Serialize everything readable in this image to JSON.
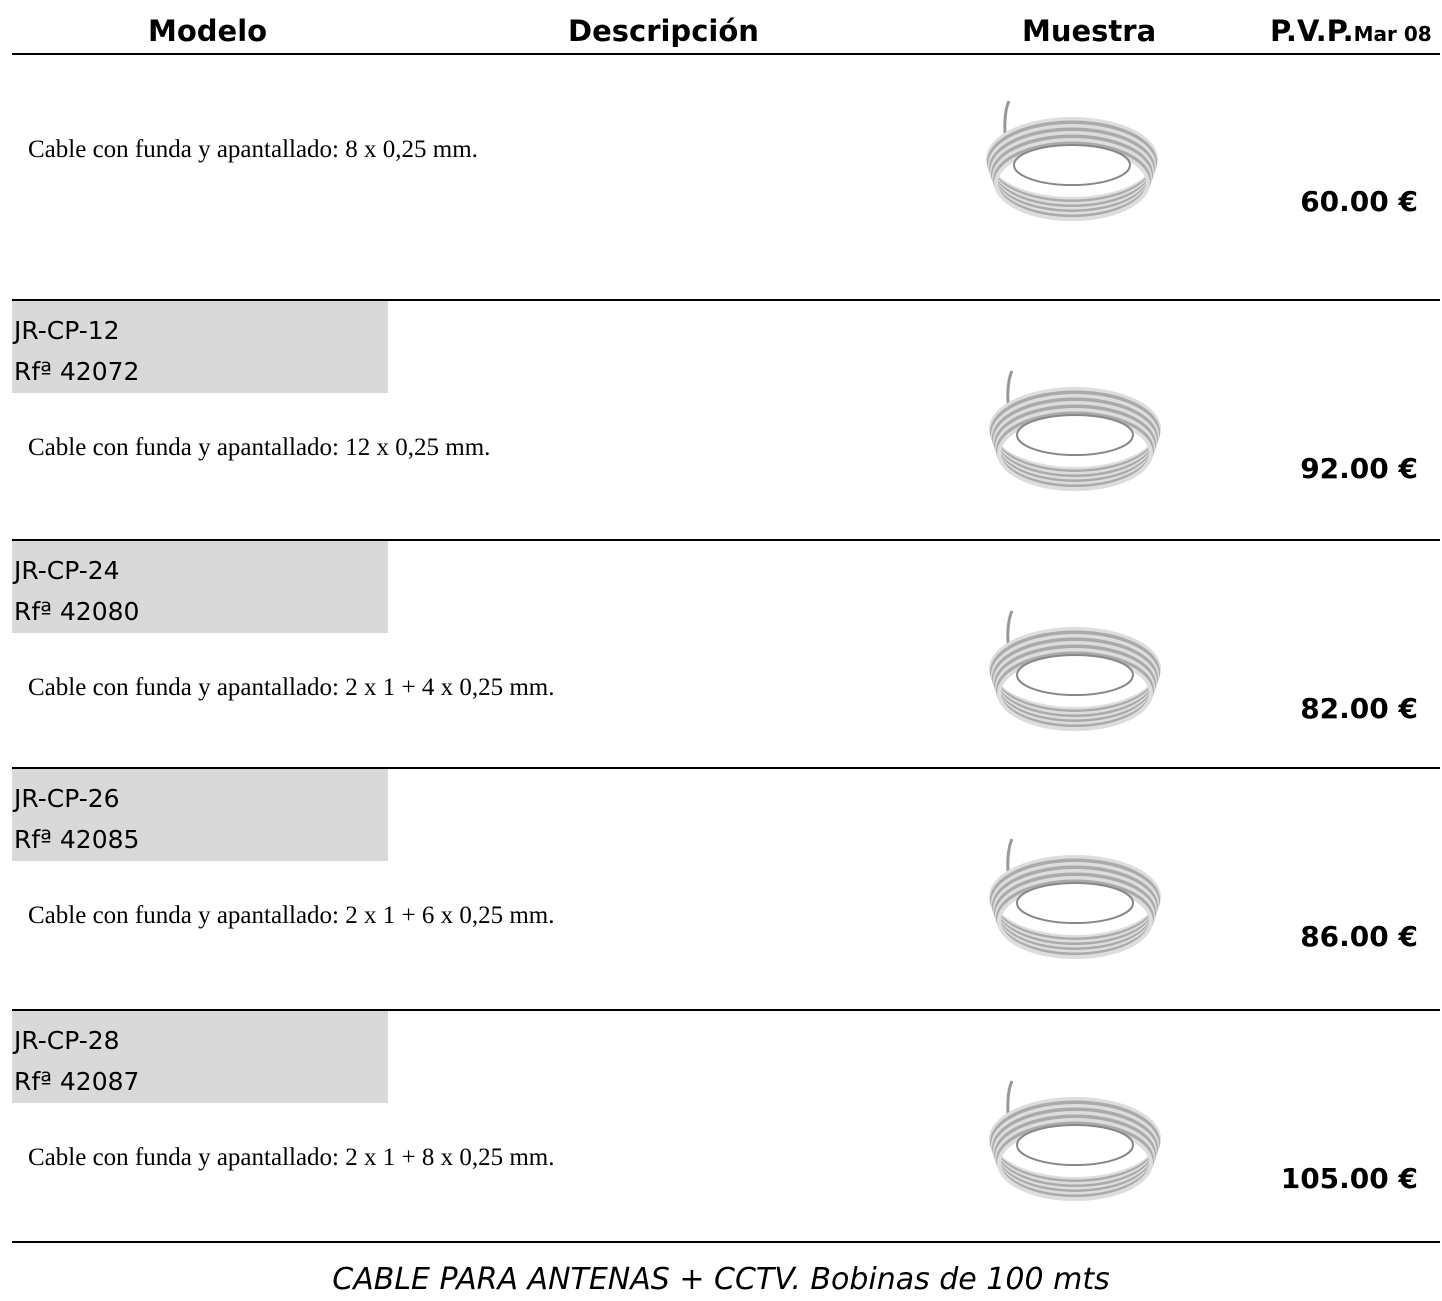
{
  "header": {
    "model": "Modelo",
    "description": "Descripción",
    "sample": "Muestra",
    "price": "P.V.P.",
    "price_date": "Mar 08"
  },
  "rows": [
    {
      "description": "Cable con funda y apantallado: 8 x 0,25 mm.",
      "price": "60.00 €"
    },
    {
      "model": "JR-CP-12",
      "ref": "Rfª 42072",
      "description": "Cable con funda y apantallado: 12 x 0,25 mm.",
      "price": "92.00 €"
    },
    {
      "model": "JR-CP-24",
      "ref": "Rfª 42080",
      "description": "Cable con funda y apantallado: 2 x 1 + 4 x 0,25 mm.",
      "price": "82.00 €"
    },
    {
      "model": "JR-CP-26",
      "ref": "Rfª 42085",
      "description": "Cable con funda y apantallado: 2 x 1 + 6 x 0,25 mm.",
      "price": "86.00 €"
    },
    {
      "model": "JR-CP-28",
      "ref": "Rfª 42087",
      "description": "Cable con funda y apantallado: 2 x 1 + 8 x 0,25 mm.",
      "price": "105.00 €"
    }
  ],
  "footer": "CABLE PARA ANTENAS + CCTV. Bobinas de 100 mts"
}
